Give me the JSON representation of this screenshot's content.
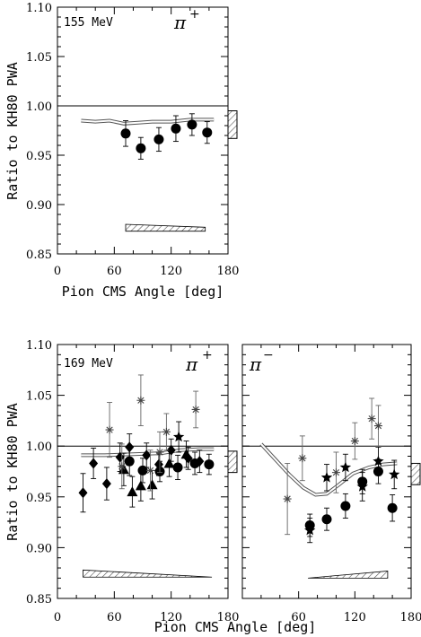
{
  "colors": {
    "ink": "#000000",
    "band": "#9a9a9a",
    "hatch": "#555555"
  },
  "chart_data": [
    {
      "type": "scatter",
      "panel": "top",
      "energy_label": "155 MeV",
      "pion_label": "π",
      "pion_charge": "+",
      "xlabel": "Pion CMS Angle [deg]",
      "ylabel": "Ratio to KH80 PWA",
      "xlim": [
        0,
        180
      ],
      "ylim": [
        0.85,
        1.1
      ],
      "xticks": [
        "0",
        "60",
        "120",
        "180"
      ],
      "yticks": [
        "0.85",
        "0.90",
        "0.95",
        "1.00",
        "1.05",
        "1.10"
      ],
      "reference_line": 1.0,
      "band": [
        {
          "x": 25,
          "y": 0.985
        },
        {
          "x": 40,
          "y": 0.984
        },
        {
          "x": 55,
          "y": 0.985
        },
        {
          "x": 70,
          "y": 0.982
        },
        {
          "x": 85,
          "y": 0.983
        },
        {
          "x": 100,
          "y": 0.984
        },
        {
          "x": 120,
          "y": 0.984
        },
        {
          "x": 140,
          "y": 0.986
        },
        {
          "x": 165,
          "y": 0.986
        }
      ],
      "norm_box": {
        "y_low": 0.967,
        "y_high": 0.995
      },
      "systematic_band": {
        "x_start": 72,
        "x_end": 156,
        "y_base": 0.873,
        "height": [
          0.007,
          0.004
        ]
      },
      "series": [
        {
          "marker": "circle",
          "points": [
            {
              "x": 72,
              "y": 0.972,
              "err": 0.013
            },
            {
              "x": 88,
              "y": 0.957,
              "err": 0.011
            },
            {
              "x": 107,
              "y": 0.966,
              "err": 0.012
            },
            {
              "x": 125,
              "y": 0.977,
              "err": 0.013
            },
            {
              "x": 142,
              "y": 0.981,
              "err": 0.011
            },
            {
              "x": 158,
              "y": 0.973,
              "err": 0.011
            }
          ]
        }
      ]
    },
    {
      "type": "scatter",
      "panel": "bottom-left",
      "energy_label": "169 MeV",
      "pion_label": "π",
      "pion_charge": "+",
      "xlabel": "Pion CMS Angle [deg]",
      "ylabel": "Ratio to KH80 PWA",
      "xlim": [
        0,
        180
      ],
      "ylim": [
        0.85,
        1.1
      ],
      "xticks": [
        "0",
        "60",
        "120",
        "180"
      ],
      "yticks": [
        "0.85",
        "0.90",
        "0.95",
        "1.00",
        "1.05",
        "1.10"
      ],
      "reference_line": 1.0,
      "band": [
        {
          "x": 25,
          "y": 0.991
        },
        {
          "x": 50,
          "y": 0.991
        },
        {
          "x": 80,
          "y": 0.992
        },
        {
          "x": 110,
          "y": 0.993
        },
        {
          "x": 130,
          "y": 0.996
        },
        {
          "x": 150,
          "y": 0.997
        },
        {
          "x": 165,
          "y": 0.997
        }
      ],
      "norm_box": {
        "y_low": 0.974,
        "y_high": 0.995
      },
      "systematic_band": {
        "x_start": 27,
        "x_end": 163,
        "y_base": 0.871,
        "height": [
          0.007,
          0.0
        ]
      },
      "series": [
        {
          "marker": "circle",
          "points": [
            {
              "x": 76,
              "y": 0.985,
              "err": 0.014
            },
            {
              "x": 90,
              "y": 0.976,
              "err": 0.012
            },
            {
              "x": 108,
              "y": 0.975,
              "err": 0.01
            },
            {
              "x": 127,
              "y": 0.979,
              "err": 0.012
            },
            {
              "x": 145,
              "y": 0.983,
              "err": 0.011
            },
            {
              "x": 160,
              "y": 0.982,
              "err": 0.01
            }
          ]
        },
        {
          "marker": "diamond",
          "points": [
            {
              "x": 27,
              "y": 0.954,
              "err": 0.019
            },
            {
              "x": 38,
              "y": 0.983,
              "err": 0.015
            },
            {
              "x": 52,
              "y": 0.963,
              "err": 0.016
            },
            {
              "x": 66,
              "y": 0.989,
              "err": 0.014
            },
            {
              "x": 76,
              "y": 0.999,
              "err": 0.013
            },
            {
              "x": 94,
              "y": 0.991,
              "err": 0.012
            },
            {
              "x": 107,
              "y": 0.982,
              "err": 0.011
            },
            {
              "x": 120,
              "y": 0.996,
              "err": 0.011
            },
            {
              "x": 138,
              "y": 0.988,
              "err": 0.011
            },
            {
              "x": 150,
              "y": 0.985,
              "err": 0.011
            }
          ]
        },
        {
          "marker": "triangle",
          "points": [
            {
              "x": 70,
              "y": 0.977,
              "err": 0.016
            },
            {
              "x": 79,
              "y": 0.955,
              "err": 0.015
            },
            {
              "x": 88,
              "y": 0.961,
              "err": 0.015
            },
            {
              "x": 100,
              "y": 0.962,
              "err": 0.014
            },
            {
              "x": 118,
              "y": 0.983,
              "err": 0.013
            },
            {
              "x": 136,
              "y": 0.992,
              "err": 0.013
            }
          ]
        },
        {
          "marker": "cross",
          "points": [
            {
              "x": 55,
              "y": 1.016,
              "err": 0.027
            },
            {
              "x": 68,
              "y": 0.98,
              "err": 0.022
            },
            {
              "x": 88,
              "y": 1.045,
              "err": 0.025
            },
            {
              "x": 98,
              "y": 0.976,
              "err": 0.02
            },
            {
              "x": 108,
              "y": 0.994,
              "err": 0.02
            },
            {
              "x": 115,
              "y": 1.014,
              "err": 0.018
            },
            {
              "x": 146,
              "y": 1.036,
              "err": 0.018
            }
          ]
        },
        {
          "marker": "star",
          "points": [
            {
              "x": 128,
              "y": 1.009,
              "err": 0.015
            }
          ]
        }
      ]
    },
    {
      "type": "scatter",
      "panel": "bottom-right",
      "energy_label": "",
      "pion_label": "π",
      "pion_charge": "−",
      "xlabel": "",
      "ylabel": "",
      "xlim": [
        0,
        180
      ],
      "ylim": [
        0.85,
        1.1
      ],
      "xticks": [
        "60",
        "120",
        "180"
      ],
      "yticks": [],
      "reference_line": 1.0,
      "band": [
        {
          "x": 20,
          "y": 1.002
        },
        {
          "x": 35,
          "y": 0.987
        },
        {
          "x": 50,
          "y": 0.972
        },
        {
          "x": 65,
          "y": 0.959
        },
        {
          "x": 78,
          "y": 0.952
        },
        {
          "x": 90,
          "y": 0.953
        },
        {
          "x": 103,
          "y": 0.962
        },
        {
          "x": 118,
          "y": 0.973
        },
        {
          "x": 135,
          "y": 0.979
        },
        {
          "x": 150,
          "y": 0.982
        },
        {
          "x": 165,
          "y": 0.983
        }
      ],
      "norm_box": {
        "y_low": 0.962,
        "y_high": 0.983
      },
      "systematic_band": {
        "x_start": 70,
        "x_end": 155,
        "y_base": 0.87,
        "height": [
          0.0,
          0.007
        ]
      },
      "series": [
        {
          "marker": "circle",
          "points": [
            {
              "x": 72,
              "y": 0.922,
              "err": 0.011
            },
            {
              "x": 90,
              "y": 0.928,
              "err": 0.011
            },
            {
              "x": 110,
              "y": 0.941,
              "err": 0.012
            },
            {
              "x": 128,
              "y": 0.965,
              "err": 0.012
            },
            {
              "x": 145,
              "y": 0.975,
              "err": 0.012
            },
            {
              "x": 160,
              "y": 0.939,
              "err": 0.013
            }
          ]
        },
        {
          "marker": "star",
          "points": [
            {
              "x": 72,
              "y": 0.917,
              "err": 0.012
            },
            {
              "x": 90,
              "y": 0.969,
              "err": 0.013
            },
            {
              "x": 110,
              "y": 0.979,
              "err": 0.013
            },
            {
              "x": 128,
              "y": 0.96,
              "err": 0.014
            },
            {
              "x": 145,
              "y": 0.985,
              "err": 0.014
            },
            {
              "x": 162,
              "y": 0.972,
              "err": 0.014
            }
          ]
        },
        {
          "marker": "cross",
          "points": [
            {
              "x": 48,
              "y": 0.948,
              "err": 0.035
            },
            {
              "x": 64,
              "y": 0.988,
              "err": 0.022
            },
            {
              "x": 100,
              "y": 0.974,
              "err": 0.02
            },
            {
              "x": 120,
              "y": 1.005,
              "err": 0.018
            },
            {
              "x": 138,
              "y": 1.027,
              "err": 0.02
            },
            {
              "x": 145,
              "y": 1.02,
              "err": 0.02
            }
          ]
        }
      ]
    }
  ]
}
